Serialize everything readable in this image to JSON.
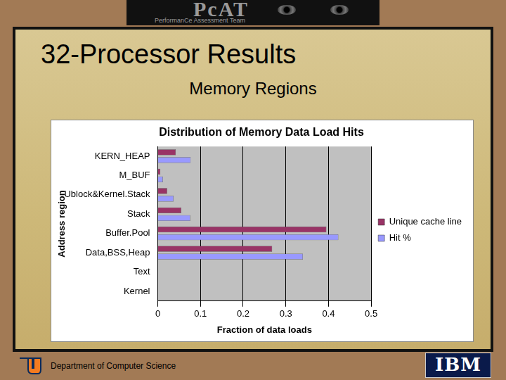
{
  "slide": {
    "header": {
      "logo": "PcAT",
      "tagline": "PerformanCe Assessment Team"
    },
    "title": "32-Processor Results",
    "subtitle": "Memory Regions",
    "footer": "Department of Computer Science",
    "corner_logo": "IBM"
  },
  "chart_data": {
    "type": "bar",
    "orientation": "horizontal",
    "title": "Distribution of Memory Data Load Hits",
    "x_label": "Fraction of data loads",
    "y_label": "Address region",
    "categories": [
      "KERN_HEAP",
      "M_BUF",
      "Ublock&Kernel.Stack",
      "Stack",
      "Buffer.Pool",
      "Data,BSS,Heap",
      "Text",
      "Kernel"
    ],
    "series": [
      {
        "name": "Unique cache line",
        "color": "#993366",
        "values": [
          0.042,
          0.006,
          0.022,
          0.055,
          0.395,
          0.268,
          0,
          0
        ]
      },
      {
        "name": "Hit %",
        "color": "#9999ff",
        "values": [
          0.077,
          0.012,
          0.037,
          0.076,
          0.423,
          0.34,
          0,
          0
        ]
      }
    ],
    "xlim": [
      0,
      0.5
    ],
    "xticks": [
      0,
      0.1,
      0.2,
      0.3,
      0.4,
      0.5
    ],
    "grid": true,
    "legend": "right"
  }
}
